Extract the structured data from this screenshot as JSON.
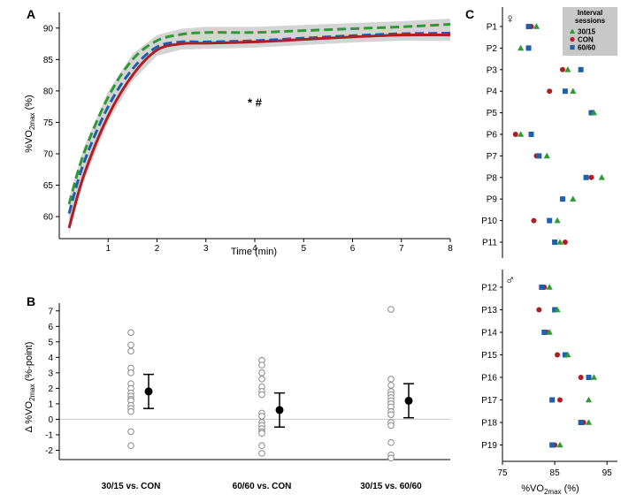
{
  "chart_data": [
    {
      "panel": "A",
      "type": "line",
      "xlabel": "Time (min)",
      "ylabel_main": "%VO",
      "ylabel_sub": "2max",
      "ylabel_tail": " (%)",
      "xlim": [
        0,
        8
      ],
      "ylim": [
        56.5,
        92.5
      ],
      "xticks": [
        1,
        2,
        3,
        4,
        5,
        6,
        7,
        8
      ],
      "yticks": [
        60,
        65,
        70,
        75,
        80,
        85,
        90
      ],
      "annotation": "* #",
      "annotation_pos": [
        4,
        77.5
      ],
      "x": [
        0.2,
        0.5,
        1,
        1.5,
        2,
        2.5,
        3,
        4,
        5,
        6,
        7,
        8
      ],
      "series": [
        {
          "name": "30/15",
          "color": "#2e9a36",
          "dash": "dashed",
          "values": [
            62.0,
            70.0,
            79.0,
            85.0,
            88.0,
            89.0,
            89.3,
            89.3,
            89.6,
            89.9,
            90.2,
            90.6
          ]
        },
        {
          "name": "60/60",
          "color": "#1f5fae",
          "dash": "dashed",
          "values": [
            60.5,
            68.5,
            77.5,
            83.5,
            87.0,
            87.8,
            87.8,
            88.0,
            88.4,
            88.8,
            89.1,
            89.2
          ]
        },
        {
          "name": "CON",
          "color": "#b01e24",
          "dash": "solid",
          "values": [
            58.2,
            66.5,
            76.0,
            82.5,
            86.5,
            87.5,
            87.6,
            87.8,
            88.2,
            88.6,
            88.9,
            88.9
          ]
        }
      ]
    },
    {
      "panel": "B",
      "type": "scatter",
      "ylabel_main": "Δ %VO",
      "ylabel_sub": "2max",
      "ylabel_tail": " (%-point)",
      "ylim": [
        -2.6,
        7.5
      ],
      "yticks": [
        -2,
        -1,
        0,
        1,
        2,
        3,
        4,
        5,
        6,
        7
      ],
      "categories": [
        "30/15 vs. CON",
        "60/60 vs. CON",
        "30/15 vs. 60/60"
      ],
      "individual": [
        [
          5.6,
          4.8,
          4.4,
          3.3,
          3.0,
          2.3,
          2.0,
          1.7,
          1.5,
          1.3,
          1.2,
          0.9,
          0.7,
          0.5,
          -0.8,
          -1.7
        ],
        [
          3.8,
          3.5,
          3.0,
          2.6,
          2.1,
          1.8,
          1.6,
          0.4,
          0.2,
          -0.2,
          -0.4,
          -0.6,
          -0.8,
          -0.9,
          -1.7,
          -2.2
        ],
        [
          7.1,
          2.6,
          2.2,
          1.8,
          1.6,
          1.4,
          1.2,
          1.0,
          0.8,
          0.5,
          0.3,
          -0.2,
          -0.4,
          -1.5,
          -2.3,
          -2.5
        ]
      ],
      "mean": [
        1.8,
        0.6,
        1.2
      ],
      "ci_low": [
        0.7,
        -0.5,
        0.1
      ],
      "ci_high": [
        2.9,
        1.7,
        2.3
      ]
    },
    {
      "panel": "C",
      "type": "scatter",
      "xlabel_main": "%VO",
      "xlabel_sub": "2max",
      "xlabel_tail": " (%)",
      "xlim": [
        75,
        97
      ],
      "xticks": [
        75,
        85,
        95
      ],
      "legend_title": "Interval sessions",
      "legend": [
        {
          "name": "30/15",
          "color": "#2e9a36",
          "marker": "triangle"
        },
        {
          "name": "CON",
          "color": "#b01e24",
          "marker": "circle"
        },
        {
          "name": "60/60",
          "color": "#1f5fae",
          "marker": "square"
        }
      ],
      "female_symbol": "♀",
      "male_symbol": "♂",
      "participants": [
        {
          "label": "P1",
          "v3015": 81.5,
          "con": 80.5,
          "v6060": 80.0
        },
        {
          "label": "P2",
          "v3015": 78.5,
          "con": 80.0,
          "v6060": 80.0
        },
        {
          "label": "P3",
          "v3015": 87.5,
          "con": 86.5,
          "v6060": 90.0
        },
        {
          "label": "P4",
          "v3015": 88.5,
          "con": 84.0,
          "v6060": 87.0
        },
        {
          "label": "P5",
          "v3015": 92.5,
          "con": 92.0,
          "v6060": 92.0
        },
        {
          "label": "P6",
          "v3015": 78.5,
          "con": 77.5,
          "v6060": 80.5
        },
        {
          "label": "P7",
          "v3015": 83.5,
          "con": 81.5,
          "v6060": 82.0
        },
        {
          "label": "P8",
          "v3015": 94.0,
          "con": 92.0,
          "v6060": 91.0
        },
        {
          "label": "P9",
          "v3015": 88.5,
          "con": 86.5,
          "v6060": 86.5
        },
        {
          "label": "P10",
          "v3015": 85.5,
          "con": 81.0,
          "v6060": 84.0
        },
        {
          "label": "P11",
          "v3015": 86.0,
          "con": 87.0,
          "v6060": 85.0
        },
        {
          "label": "P12",
          "v3015": 84.0,
          "con": 83.0,
          "v6060": 82.5
        },
        {
          "label": "P13",
          "v3015": 85.5,
          "con": 82.0,
          "v6060": 85.0
        },
        {
          "label": "P14",
          "v3015": 84.0,
          "con": 83.5,
          "v6060": 83.0
        },
        {
          "label": "P15",
          "v3015": 87.5,
          "con": 85.5,
          "v6060": 87.0
        },
        {
          "label": "P16",
          "v3015": 92.5,
          "con": 90.0,
          "v6060": 91.5
        },
        {
          "label": "P17",
          "v3015": 91.5,
          "con": 86.0,
          "v6060": 84.5
        },
        {
          "label": "P18",
          "v3015": 91.5,
          "con": 90.5,
          "v6060": 90.0
        },
        {
          "label": "P19",
          "v3015": 86.0,
          "con": 85.0,
          "v6060": 84.5
        }
      ]
    }
  ]
}
